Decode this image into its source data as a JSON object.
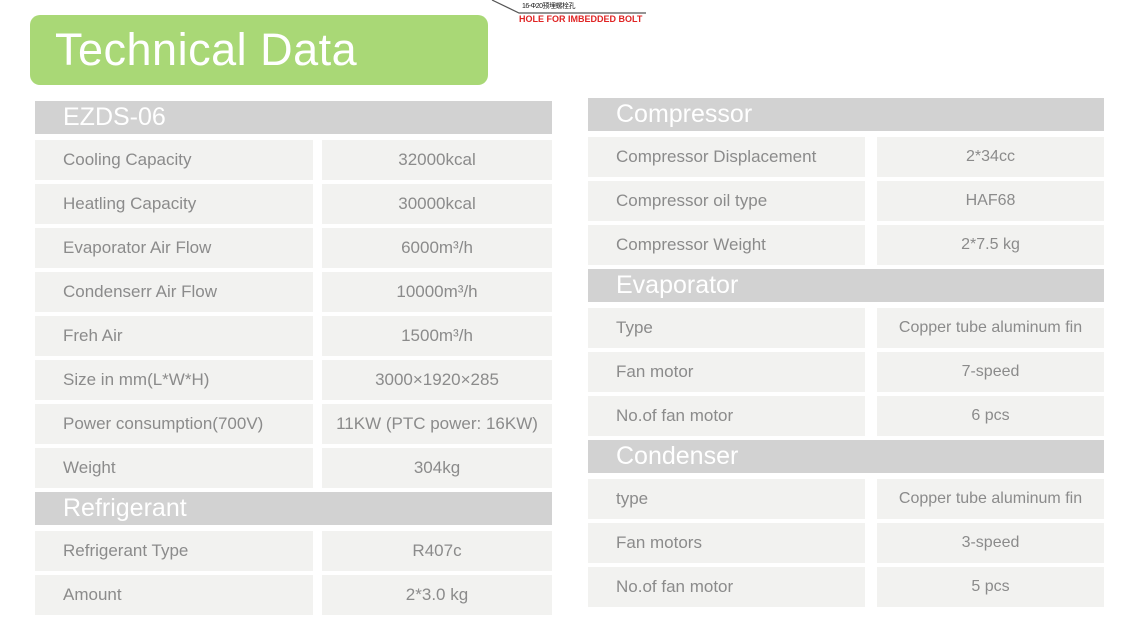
{
  "title": "Technical Data",
  "drawing": {
    "dimension_label": "16-Φ20预埋螺栓孔",
    "annotation": "HOLE FOR IMBEDDED BOLT"
  },
  "colors": {
    "accent_green": "#a9d876",
    "section_header_gray": "#d2d2d2",
    "row_background": "#f2f2f0",
    "cell_text_gray": "#8b8b8b",
    "annotation_red": "#e02424"
  },
  "tables": {
    "left": {
      "sections": [
        {
          "header": "EZDS-06",
          "rows": [
            {
              "label": "Cooling Capacity",
              "value": "32000kcal"
            },
            {
              "label": "Heatling Capacity",
              "value": "30000kcal"
            },
            {
              "label": "Evaporator Air Flow",
              "value": "6000m³/h"
            },
            {
              "label": "Condenserr Air Flow",
              "value": "10000m³/h"
            },
            {
              "label": "Freh Air",
              "value": "1500m³/h"
            },
            {
              "label": "Size in mm(L*W*H)",
              "value": "3000×1920×285"
            },
            {
              "label": "Power consumption(700V)",
              "value": "11KW (PTC power: 16KW)"
            },
            {
              "label": "Weight",
              "value": "304kg"
            }
          ]
        },
        {
          "header": "Refrigerant",
          "rows": [
            {
              "label": "Refrigerant Type",
              "value": "R407c"
            },
            {
              "label": "Amount",
              "value": "2*3.0 kg"
            }
          ]
        }
      ]
    },
    "right": {
      "sections": [
        {
          "header": "Compressor",
          "rows": [
            {
              "label": "Compressor Displacement",
              "value": "2*34cc"
            },
            {
              "label": "Compressor oil type",
              "value": "HAF68"
            },
            {
              "label": "Compressor Weight",
              "value": "2*7.5 kg"
            }
          ]
        },
        {
          "header": "Evaporator",
          "rows": [
            {
              "label": "Type",
              "value": "Copper tube aluminum fin"
            },
            {
              "label": "Fan motor",
              "value": "7-speed"
            },
            {
              "label": "No.of fan motor",
              "value": "6 pcs"
            }
          ]
        },
        {
          "header": "Condenser",
          "rows": [
            {
              "label": "type",
              "value": "Copper tube aluminum fin"
            },
            {
              "label": "Fan motors",
              "value": "3-speed"
            },
            {
              "label": "No.of fan motor",
              "value": "5 pcs"
            }
          ]
        }
      ]
    }
  }
}
